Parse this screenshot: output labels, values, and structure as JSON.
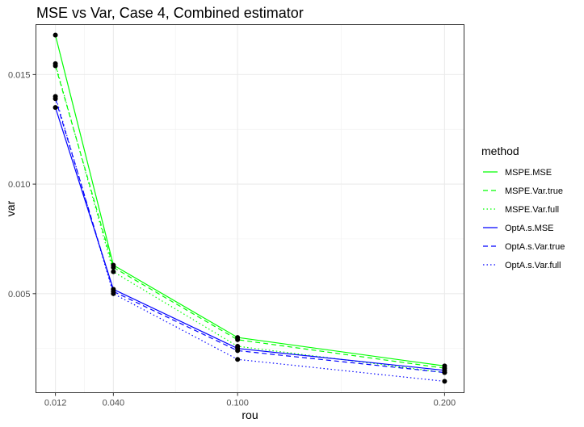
{
  "chart_data": {
    "type": "line",
    "title": "MSE vs Var, Case 4, Combined estimator",
    "xlabel": "rou",
    "ylabel": "var",
    "x": [
      0.012,
      0.04,
      0.1,
      0.2
    ],
    "x_tick_labels": [
      "0.012",
      "0.040",
      "0.100",
      "0.200"
    ],
    "y_ticks": [
      0.005,
      0.01,
      0.015
    ],
    "y_tick_labels": [
      "0.005",
      "0.010",
      "0.015"
    ],
    "xlim": [
      0.0026,
      0.2094
    ],
    "ylim": [
      0.00048,
      0.01728
    ],
    "grid": true,
    "legend_position": "right",
    "legend_title": "method",
    "series": [
      {
        "name": "MSPE.MSE",
        "color": "#00ff00",
        "dash": "solid",
        "values": [
          0.0168,
          0.0063,
          0.003,
          0.0017
        ]
      },
      {
        "name": "MSPE.Var.true",
        "color": "#00ff00",
        "dash": "dashed",
        "values": [
          0.0154,
          0.0062,
          0.0029,
          0.0016
        ]
      },
      {
        "name": "MSPE.Var.full",
        "color": "#00ff00",
        "dash": "dotted",
        "values": [
          0.0155,
          0.006,
          0.0026,
          0.0014
        ]
      },
      {
        "name": "OptA.s.MSE",
        "color": "#0000ff",
        "dash": "solid",
        "values": [
          0.0135,
          0.0052,
          0.0025,
          0.0015
        ]
      },
      {
        "name": "OptA.s.Var.true",
        "color": "#0000ff",
        "dash": "dashed",
        "values": [
          0.0139,
          0.0051,
          0.0024,
          0.0014
        ]
      },
      {
        "name": "OptA.s.Var.full",
        "color": "#0000ff",
        "dash": "dotted",
        "values": [
          0.014,
          0.005,
          0.002,
          0.001
        ]
      }
    ]
  }
}
